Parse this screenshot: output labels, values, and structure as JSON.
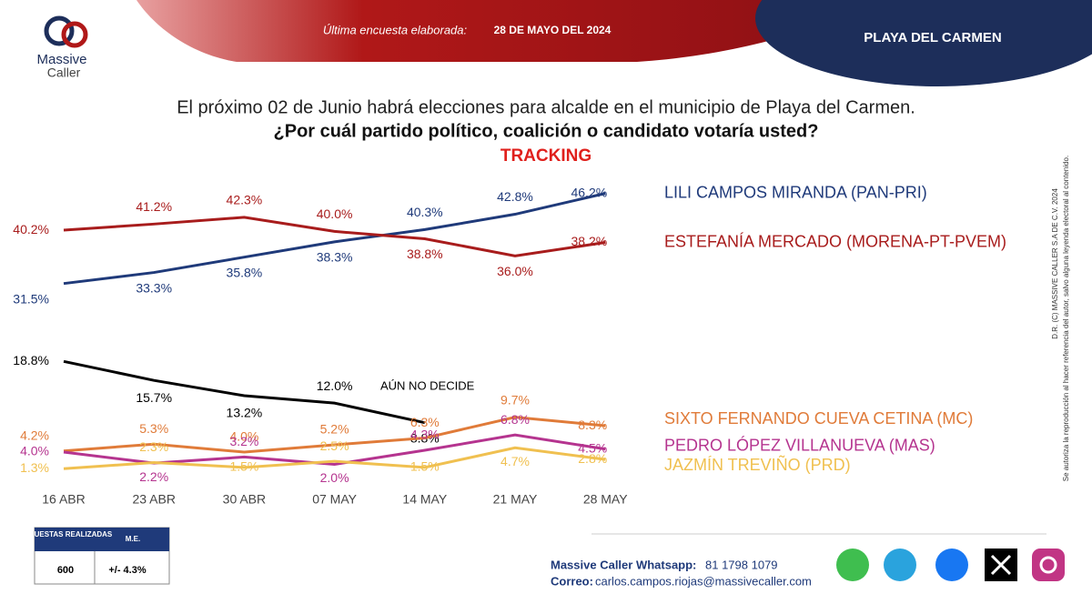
{
  "header": {
    "survey_label": "Última encuesta elaborada:",
    "survey_date": "28 DE MAYO DEL 2024",
    "location": "PLAYA DEL CARMEN",
    "logo_line1": "Massive",
    "logo_line2": "Caller"
  },
  "chart_data": {
    "type": "line",
    "title": "El próximo 02 de Junio habrá elecciones para alcalde en el municipio de  Playa del Carmen.",
    "subtitle": "¿Por cuál partido político, coalición o candidato votaría usted?",
    "annotation": "TRACKING",
    "categories": [
      "16 ABR",
      "23 ABR",
      "30 ABR",
      "07 MAY",
      "14 MAY",
      "21 MAY",
      "28 MAY"
    ],
    "ylim": [
      0,
      50
    ],
    "series": [
      {
        "name": "LILI CAMPOS MIRANDA (PAN-PRI)",
        "color": "#1f3a7a",
        "values": [
          31.5,
          33.3,
          35.8,
          38.3,
          40.3,
          42.8,
          46.2
        ],
        "value_labels": [
          "31.5%",
          "33.3%",
          "35.8%",
          "38.3%",
          "40.3%",
          "42.8%",
          "46.2%"
        ]
      },
      {
        "name": "ESTEFANÍA MERCADO (MORENA-PT-PVEM)",
        "color": "#a81c1c",
        "values": [
          40.2,
          41.2,
          42.3,
          40.0,
          38.8,
          36.0,
          38.2
        ],
        "value_labels": [
          "40.2%",
          "41.2%",
          "42.3%",
          "40.0%",
          "38.8%",
          "36.0%",
          "38.2%"
        ]
      },
      {
        "name": "AÚN NO DECIDE",
        "color": "#000000",
        "values": [
          18.8,
          15.7,
          13.2,
          12.0,
          8.8,
          null,
          null
        ],
        "value_labels": [
          "18.8%",
          "15.7%",
          "13.2%",
          "12.0%",
          "8.8%",
          null,
          null
        ]
      },
      {
        "name": "SIXTO FERNANDO CUEVA CETINA (MC)",
        "color": "#e07b39",
        "values": [
          4.2,
          5.3,
          4.0,
          5.2,
          6.3,
          9.7,
          8.3
        ],
        "value_labels": [
          "4.2%",
          "5.3%",
          "4.0%",
          "5.2%",
          "6.3%",
          "9.7%",
          "8.3%"
        ]
      },
      {
        "name": "PEDRO LÓPEZ VILLANUEVA (MAS)",
        "color": "#b5348f",
        "values": [
          4.0,
          2.2,
          3.2,
          2.0,
          4.3,
          6.8,
          4.5
        ],
        "value_labels": [
          "4.0%",
          "2.2%",
          "3.2%",
          "2.0%",
          "4.3%",
          "6.8%",
          "4.5%"
        ]
      },
      {
        "name": "JAZMÍN TREVIÑO (PRD)",
        "color": "#f0c050",
        "values": [
          1.3,
          2.3,
          1.5,
          2.5,
          1.5,
          4.7,
          2.8
        ],
        "value_labels": [
          "1.3%",
          "2.3%",
          "1.5%",
          "2.5%",
          "1.5%",
          "4.7%",
          "2.8%"
        ]
      }
    ]
  },
  "sample_table": {
    "headers": [
      "ENCUESTAS REALIZADAS",
      "M.E."
    ],
    "row": [
      "600",
      "+/- 4.3%"
    ]
  },
  "contact": {
    "whatsapp_label": "Massive Caller Whatsapp:",
    "whatsapp": "81 1798 1079",
    "email_label": "Correo:",
    "email": "carlos.campos.riojas@massivecaller.com"
  },
  "copyright": {
    "line1": "D.R. (C) MASSIVE CALLER S.A DE C.V. 2024",
    "line2": "Se autoriza la reproducción al hacer referencia del autor, salvo alguna leyenda electoral al contenido."
  }
}
